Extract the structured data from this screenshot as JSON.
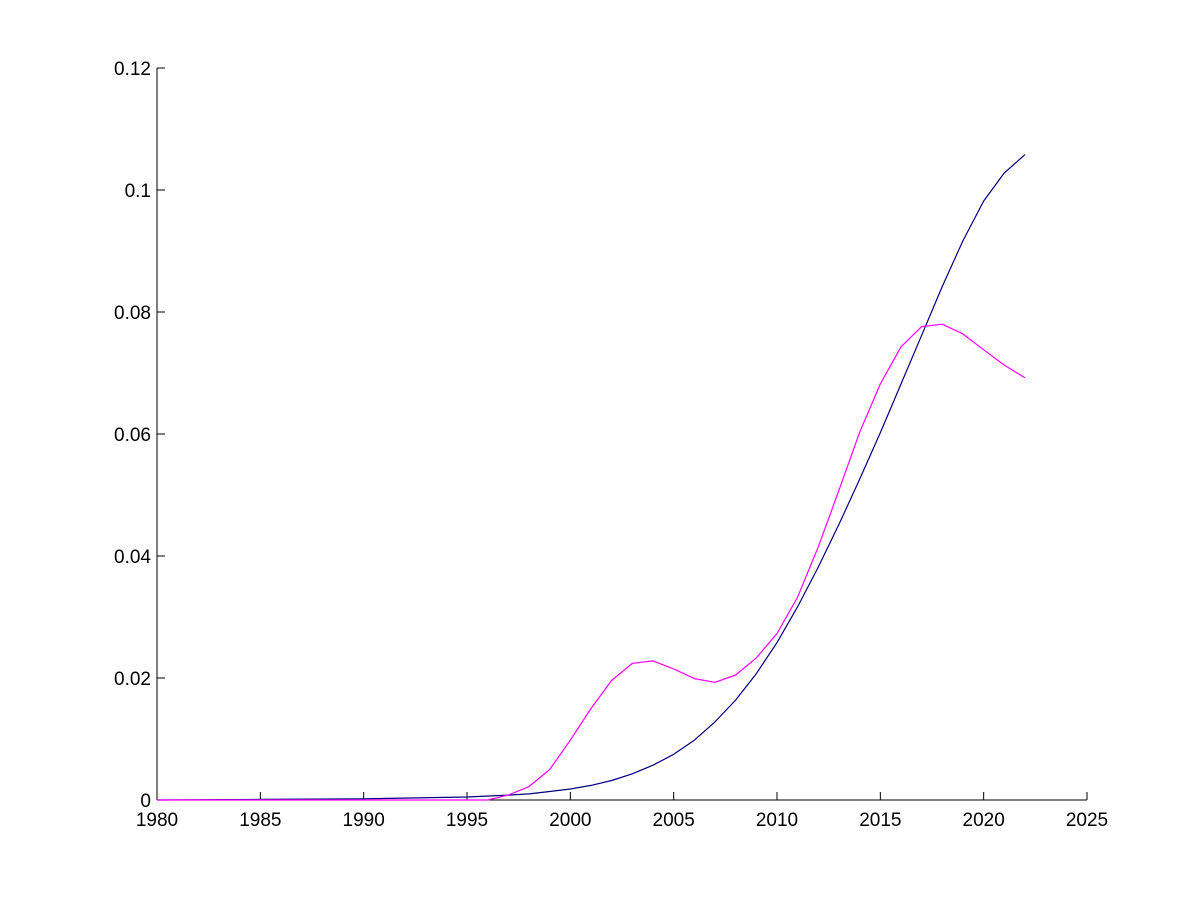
{
  "chart_data": {
    "type": "line",
    "title": "",
    "xlabel": "",
    "ylabel": "",
    "xlim": [
      1980,
      2025
    ],
    "ylim": [
      0,
      0.12
    ],
    "x_ticks": [
      1980,
      1985,
      1990,
      1995,
      2000,
      2005,
      2010,
      2015,
      2020,
      2025
    ],
    "x_tick_labels": [
      "1980",
      "1985",
      "1990",
      "1995",
      "2000",
      "2005",
      "2010",
      "2015",
      "2020",
      "2025"
    ],
    "y_ticks": [
      0,
      0.02,
      0.04,
      0.06,
      0.08,
      0.1,
      0.12
    ],
    "y_tick_labels": [
      "0",
      "0.02",
      "0.04",
      "0.06",
      "0.08",
      "0.1",
      "0.12"
    ],
    "grid": false,
    "legend": "none",
    "series": [
      {
        "color": "#000080",
        "x": [
          1980,
          1985,
          1990,
          1995,
          1997,
          1998,
          1999,
          2000,
          2001,
          2002,
          2003,
          2004,
          2005,
          2006,
          2007,
          2008,
          2009,
          2010,
          2011,
          2012,
          2013,
          2014,
          2015,
          2016,
          2017,
          2018,
          2019,
          2020,
          2021,
          2022
        ],
        "y": [
          0,
          0.0001,
          0.0002,
          0.0005,
          0.0008,
          0.001,
          0.0014,
          0.0018,
          0.0024,
          0.0032,
          0.0043,
          0.0057,
          0.0075,
          0.0098,
          0.0128,
          0.0164,
          0.0207,
          0.0258,
          0.0317,
          0.0382,
          0.0452,
          0.0526,
          0.0602,
          0.0682,
          0.0762,
          0.0842,
          0.0917,
          0.0982,
          0.1028,
          0.1058
        ]
      },
      {
        "color": "#ff00ff",
        "x": [
          1980,
          1985,
          1990,
          1995,
          1996,
          1997,
          1998,
          1999,
          2000,
          2001,
          2002,
          2003,
          2004,
          2005,
          2006,
          2007,
          2008,
          2009,
          2010,
          2011,
          2012,
          2013,
          2014,
          2015,
          2016,
          2017,
          2018,
          2019,
          2020,
          2021,
          2022
        ],
        "y": [
          0,
          0,
          0,
          0,
          0,
          0.0008,
          0.0022,
          0.005,
          0.0098,
          0.015,
          0.0196,
          0.0224,
          0.0228,
          0.0215,
          0.0199,
          0.0193,
          0.0205,
          0.0233,
          0.0273,
          0.0333,
          0.0415,
          0.0508,
          0.0603,
          0.0682,
          0.0743,
          0.0776,
          0.078,
          0.0764,
          0.0738,
          0.0713,
          0.0692
        ]
      }
    ]
  }
}
